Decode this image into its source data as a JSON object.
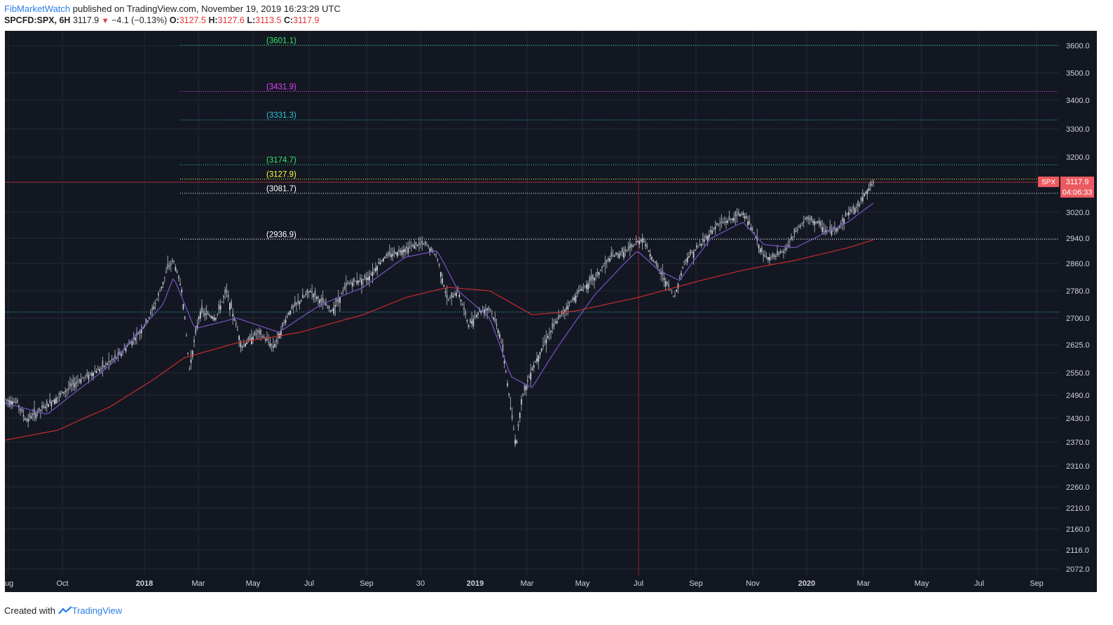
{
  "header": {
    "author": "FibMarketWatch",
    "published": "published on TradingView.com, November 19, 2019 16:23:29 UTC",
    "symbol": "SPCFD:SPX, 6H",
    "last": "3117.9",
    "change": "−4.1 (−0.13%)",
    "o_label": "O:",
    "o_value": "3127.5",
    "h_label": "H:",
    "h_value": "3127.6",
    "l_label": "L:",
    "l_value": "3113.5",
    "c_label": "C:",
    "c_value": "3117.9"
  },
  "footer": {
    "created_with": "Created with",
    "brand": "TradingView"
  },
  "colors": {
    "background": "#131722",
    "grid": "#242a36",
    "candle": "#9aa0ab",
    "ma_fast": "#7a54c2",
    "ma_slow": "#c62c2c",
    "price_tag": "#ec5a5f"
  },
  "chart_data": {
    "type": "candlestick",
    "symbol": "SPX",
    "timeframe": "6H",
    "ylim": [
      2060,
      3640
    ],
    "y_ticks": [
      {
        "value": 3600,
        "label": "3600.0"
      },
      {
        "value": 3500,
        "label": "3500.0"
      },
      {
        "value": 3400,
        "label": "3400.0"
      },
      {
        "value": 3300,
        "label": "3300.0"
      },
      {
        "value": 3200,
        "label": "3200.0"
      },
      {
        "value": 3020,
        "label": "3020.0"
      },
      {
        "value": 2940,
        "label": "2940.0"
      },
      {
        "value": 2860,
        "label": "2860.0"
      },
      {
        "value": 2780,
        "label": "2780.0"
      },
      {
        "value": 2700,
        "label": "2700.0"
      },
      {
        "value": 2625,
        "label": "2625.0"
      },
      {
        "value": 2550,
        "label": "2550.0"
      },
      {
        "value": 2490,
        "label": "2490.0"
      },
      {
        "value": 2430,
        "label": "2430.0"
      },
      {
        "value": 2370,
        "label": "2370.0"
      },
      {
        "value": 2310,
        "label": "2310.0"
      },
      {
        "value": 2260,
        "label": "2260.0"
      },
      {
        "value": 2210,
        "label": "2210.0"
      },
      {
        "value": 2160,
        "label": "2160.0"
      },
      {
        "value": 2116,
        "label": "2116.0"
      },
      {
        "value": 2072,
        "label": "2072.0"
      }
    ],
    "x_ticks": [
      {
        "label": "ug",
        "bold": false
      },
      {
        "label": "Oct",
        "bold": false
      },
      {
        "label": "2018",
        "bold": true
      },
      {
        "label": "Mar",
        "bold": false
      },
      {
        "label": "May",
        "bold": false
      },
      {
        "label": "Jul",
        "bold": false
      },
      {
        "label": "Sep",
        "bold": false
      },
      {
        "label": "30",
        "bold": false
      },
      {
        "label": "2019",
        "bold": true
      },
      {
        "label": "Mar",
        "bold": false
      },
      {
        "label": "May",
        "bold": false
      },
      {
        "label": "Jul",
        "bold": false
      },
      {
        "label": "Sep",
        "bold": false
      },
      {
        "label": "Nov",
        "bold": false
      },
      {
        "label": "2020",
        "bold": true
      },
      {
        "label": "Mar",
        "bold": false
      },
      {
        "label": "May",
        "bold": false
      },
      {
        "label": "Jul",
        "bold": false
      },
      {
        "label": "Sep",
        "bold": false
      }
    ],
    "fib_levels": [
      {
        "value": 3601.1,
        "label": "(3601.1)",
        "color": "#2ee66b"
      },
      {
        "value": 3431.9,
        "label": "(3431.9)",
        "color": "#e040fb"
      },
      {
        "value": 3331.3,
        "label": "(3331.3)",
        "color": "#2ec4d6"
      },
      {
        "value": 3174.7,
        "label": "(3174.7)",
        "color": "#2ee66b"
      },
      {
        "value": 3127.9,
        "label": "(3127.9)",
        "color": "#ffff3b"
      },
      {
        "value": 3081.7,
        "label": "(3081.7)",
        "color": "#ffffff"
      },
      {
        "value": 2936.9,
        "label": "(2936.9)",
        "color": "#ffffff"
      }
    ],
    "support_line": {
      "value": 2718,
      "color": "#2ec4d6"
    },
    "last_price": {
      "value": 3117.9,
      "label": "SPX",
      "price_label": "3117.9",
      "countdown": "04:06:33"
    },
    "close_path": [
      [
        0.0,
        2480
      ],
      [
        0.012,
        2470
      ],
      [
        0.02,
        2425
      ],
      [
        0.033,
        2450
      ],
      [
        0.05,
        2485
      ],
      [
        0.07,
        2530
      ],
      [
        0.09,
        2560
      ],
      [
        0.11,
        2600
      ],
      [
        0.125,
        2650
      ],
      [
        0.135,
        2690
      ],
      [
        0.145,
        2760
      ],
      [
        0.155,
        2850
      ],
      [
        0.16,
        2870
      ],
      [
        0.168,
        2780
      ],
      [
        0.175,
        2560
      ],
      [
        0.185,
        2720
      ],
      [
        0.2,
        2700
      ],
      [
        0.21,
        2780
      ],
      [
        0.225,
        2620
      ],
      [
        0.24,
        2660
      ],
      [
        0.255,
        2620
      ],
      [
        0.27,
        2720
      ],
      [
        0.29,
        2780
      ],
      [
        0.31,
        2720
      ],
      [
        0.325,
        2800
      ],
      [
        0.345,
        2820
      ],
      [
        0.36,
        2880
      ],
      [
        0.375,
        2900
      ],
      [
        0.39,
        2920
      ],
      [
        0.4,
        2920
      ],
      [
        0.41,
        2880
      ],
      [
        0.42,
        2750
      ],
      [
        0.43,
        2780
      ],
      [
        0.44,
        2680
      ],
      [
        0.45,
        2720
      ],
      [
        0.46,
        2730
      ],
      [
        0.47,
        2650
      ],
      [
        0.475,
        2560
      ],
      [
        0.48,
        2450
      ],
      [
        0.485,
        2360
      ],
      [
        0.49,
        2480
      ],
      [
        0.5,
        2560
      ],
      [
        0.515,
        2650
      ],
      [
        0.53,
        2720
      ],
      [
        0.545,
        2780
      ],
      [
        0.56,
        2820
      ],
      [
        0.575,
        2880
      ],
      [
        0.59,
        2900
      ],
      [
        0.605,
        2940
      ],
      [
        0.615,
        2870
      ],
      [
        0.625,
        2820
      ],
      [
        0.635,
        2760
      ],
      [
        0.645,
        2870
      ],
      [
        0.66,
        2920
      ],
      [
        0.675,
        2980
      ],
      [
        0.69,
        3000
      ],
      [
        0.7,
        3020
      ],
      [
        0.71,
        2960
      ],
      [
        0.72,
        2880
      ],
      [
        0.73,
        2880
      ],
      [
        0.74,
        2900
      ],
      [
        0.75,
        2960
      ],
      [
        0.76,
        3000
      ],
      [
        0.77,
        2990
      ],
      [
        0.78,
        2960
      ],
      [
        0.79,
        2970
      ],
      [
        0.8,
        3020
      ],
      [
        0.81,
        3040
      ],
      [
        0.815,
        3080
      ],
      [
        0.82,
        3100
      ],
      [
        0.824,
        3117.9
      ]
    ],
    "ma_fast_path": [
      [
        0.0,
        2470
      ],
      [
        0.04,
        2440
      ],
      [
        0.1,
        2570
      ],
      [
        0.15,
        2740
      ],
      [
        0.16,
        2820
      ],
      [
        0.18,
        2670
      ],
      [
        0.22,
        2700
      ],
      [
        0.26,
        2660
      ],
      [
        0.3,
        2740
      ],
      [
        0.34,
        2790
      ],
      [
        0.38,
        2880
      ],
      [
        0.41,
        2900
      ],
      [
        0.43,
        2780
      ],
      [
        0.46,
        2700
      ],
      [
        0.48,
        2540
      ],
      [
        0.5,
        2510
      ],
      [
        0.52,
        2600
      ],
      [
        0.56,
        2770
      ],
      [
        0.6,
        2900
      ],
      [
        0.62,
        2840
      ],
      [
        0.64,
        2810
      ],
      [
        0.67,
        2940
      ],
      [
        0.7,
        2990
      ],
      [
        0.72,
        2920
      ],
      [
        0.75,
        2910
      ],
      [
        0.78,
        2960
      ],
      [
        0.8,
        2990
      ],
      [
        0.824,
        3050
      ]
    ],
    "ma_slow_path": [
      [
        0.0,
        2375
      ],
      [
        0.05,
        2400
      ],
      [
        0.1,
        2460
      ],
      [
        0.14,
        2530
      ],
      [
        0.17,
        2590
      ],
      [
        0.22,
        2630
      ],
      [
        0.28,
        2660
      ],
      [
        0.34,
        2710
      ],
      [
        0.38,
        2760
      ],
      [
        0.42,
        2790
      ],
      [
        0.46,
        2780
      ],
      [
        0.5,
        2710
      ],
      [
        0.54,
        2720
      ],
      [
        0.6,
        2760
      ],
      [
        0.66,
        2810
      ],
      [
        0.7,
        2840
      ],
      [
        0.75,
        2870
      ],
      [
        0.8,
        2910
      ],
      [
        0.824,
        2935
      ]
    ]
  }
}
